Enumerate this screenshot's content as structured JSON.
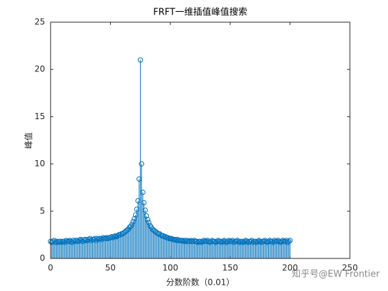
{
  "chart_data": {
    "type": "stem",
    "title": "FRFT一维插值峰值搜索",
    "x_label": "分数阶数（0.01）",
    "y_label": "峰值",
    "x": [
      0,
      1,
      2,
      3,
      4,
      5,
      6,
      7,
      8,
      9,
      10,
      11,
      12,
      13,
      14,
      15,
      16,
      17,
      18,
      19,
      20,
      21,
      22,
      23,
      24,
      25,
      26,
      27,
      28,
      29,
      30,
      31,
      32,
      33,
      34,
      35,
      36,
      37,
      38,
      39,
      40,
      41,
      42,
      43,
      44,
      45,
      46,
      47,
      48,
      49,
      50,
      51,
      52,
      53,
      54,
      55,
      56,
      57,
      58,
      59,
      60,
      61,
      62,
      63,
      64,
      65,
      66,
      67,
      68,
      69,
      70,
      71,
      72,
      73,
      74,
      75,
      76,
      77,
      78,
      79,
      80,
      81,
      82,
      83,
      84,
      85,
      86,
      87,
      88,
      89,
      90,
      91,
      92,
      93,
      94,
      95,
      96,
      97,
      98,
      99,
      100,
      101,
      102,
      103,
      104,
      105,
      106,
      107,
      108,
      109,
      110,
      111,
      112,
      113,
      114,
      115,
      116,
      117,
      118,
      119,
      120,
      121,
      122,
      123,
      124,
      125,
      126,
      127,
      128,
      129,
      130,
      131,
      132,
      133,
      134,
      135,
      136,
      137,
      138,
      139,
      140,
      141,
      142,
      143,
      144,
      145,
      146,
      147,
      148,
      149,
      150,
      151,
      152,
      153,
      154,
      155,
      156,
      157,
      158,
      159,
      160,
      161,
      162,
      163,
      164,
      165,
      166,
      167,
      168,
      169,
      170,
      171,
      172,
      173,
      174,
      175,
      176,
      177,
      178,
      179,
      180,
      181,
      182,
      183,
      184,
      185,
      186,
      187,
      188,
      189,
      190,
      191,
      192,
      193,
      194,
      195,
      196,
      197,
      198,
      199,
      200
    ],
    "values": [
      1.8,
      1.7,
      1.8,
      1.9,
      1.7,
      1.8,
      1.7,
      1.8,
      1.8,
      1.7,
      1.8,
      1.8,
      1.7,
      1.9,
      1.8,
      1.8,
      1.9,
      1.8,
      1.7,
      1.9,
      1.8,
      1.9,
      1.9,
      1.8,
      1.9,
      2.0,
      1.9,
      1.8,
      2.0,
      1.9,
      2.0,
      1.9,
      2.0,
      2.1,
      1.9,
      2.0,
      2.0,
      2.1,
      1.9,
      2.1,
      2.0,
      2.1,
      2.1,
      2.0,
      2.2,
      2.1,
      2.1,
      2.2,
      2.1,
      2.2,
      2.2,
      2.3,
      2.2,
      2.3,
      2.4,
      2.3,
      2.4,
      2.5,
      2.5,
      2.6,
      2.6,
      2.7,
      2.8,
      2.9,
      3.0,
      3.1,
      3.3,
      3.4,
      3.6,
      3.9,
      4.2,
      4.6,
      5.2,
      6.1,
      8.4,
      21,
      10,
      7,
      5.9,
      5.1,
      4.5,
      4.1,
      3.8,
      3.5,
      3.3,
      3.1,
      3.0,
      2.9,
      2.8,
      2.7,
      2.6,
      2.6,
      2.5,
      2.4,
      2.4,
      2.3,
      2.3,
      2.2,
      2.2,
      2.1,
      2.1,
      2.1,
      2.0,
      2.0,
      2.0,
      1.9,
      2.0,
      1.9,
      1.9,
      1.9,
      1.9,
      1.8,
      1.9,
      1.8,
      1.9,
      1.8,
      1.8,
      1.9,
      1.8,
      1.8,
      1.9,
      1.8,
      1.8,
      1.7,
      1.8,
      1.8,
      1.7,
      1.8,
      1.9,
      1.8,
      1.8,
      1.9,
      1.8,
      1.7,
      1.8,
      1.9,
      1.8,
      1.8,
      1.7,
      1.8,
      1.9,
      1.8,
      1.8,
      1.7,
      1.8,
      1.9,
      1.8,
      1.7,
      1.8,
      1.9,
      1.8,
      1.8,
      1.9,
      1.7,
      1.8,
      1.8,
      1.9,
      1.8,
      1.7,
      1.8,
      1.8,
      1.7,
      1.8,
      1.9,
      1.8,
      1.7,
      1.8,
      1.8,
      1.9,
      1.7,
      1.8,
      1.8,
      1.7,
      1.8,
      1.9,
      1.8,
      1.7,
      1.8,
      1.8,
      1.9,
      1.8,
      1.7,
      1.8,
      1.9,
      1.8,
      1.8,
      1.7,
      1.9,
      1.8,
      1.8,
      1.9,
      1.8,
      1.7,
      1.8,
      1.9,
      1.8,
      1.8,
      1.9,
      1.7,
      1.8,
      1.9
    ],
    "color": "#0072bd",
    "xlim": [
      0,
      250
    ],
    "ylim": [
      0,
      25
    ],
    "xticks": [
      0,
      50,
      100,
      150,
      200,
      250
    ],
    "yticks": [
      0,
      5,
      10,
      15,
      20,
      25
    ],
    "grid": false
  },
  "watermark": "知乎号@EW Frontier"
}
